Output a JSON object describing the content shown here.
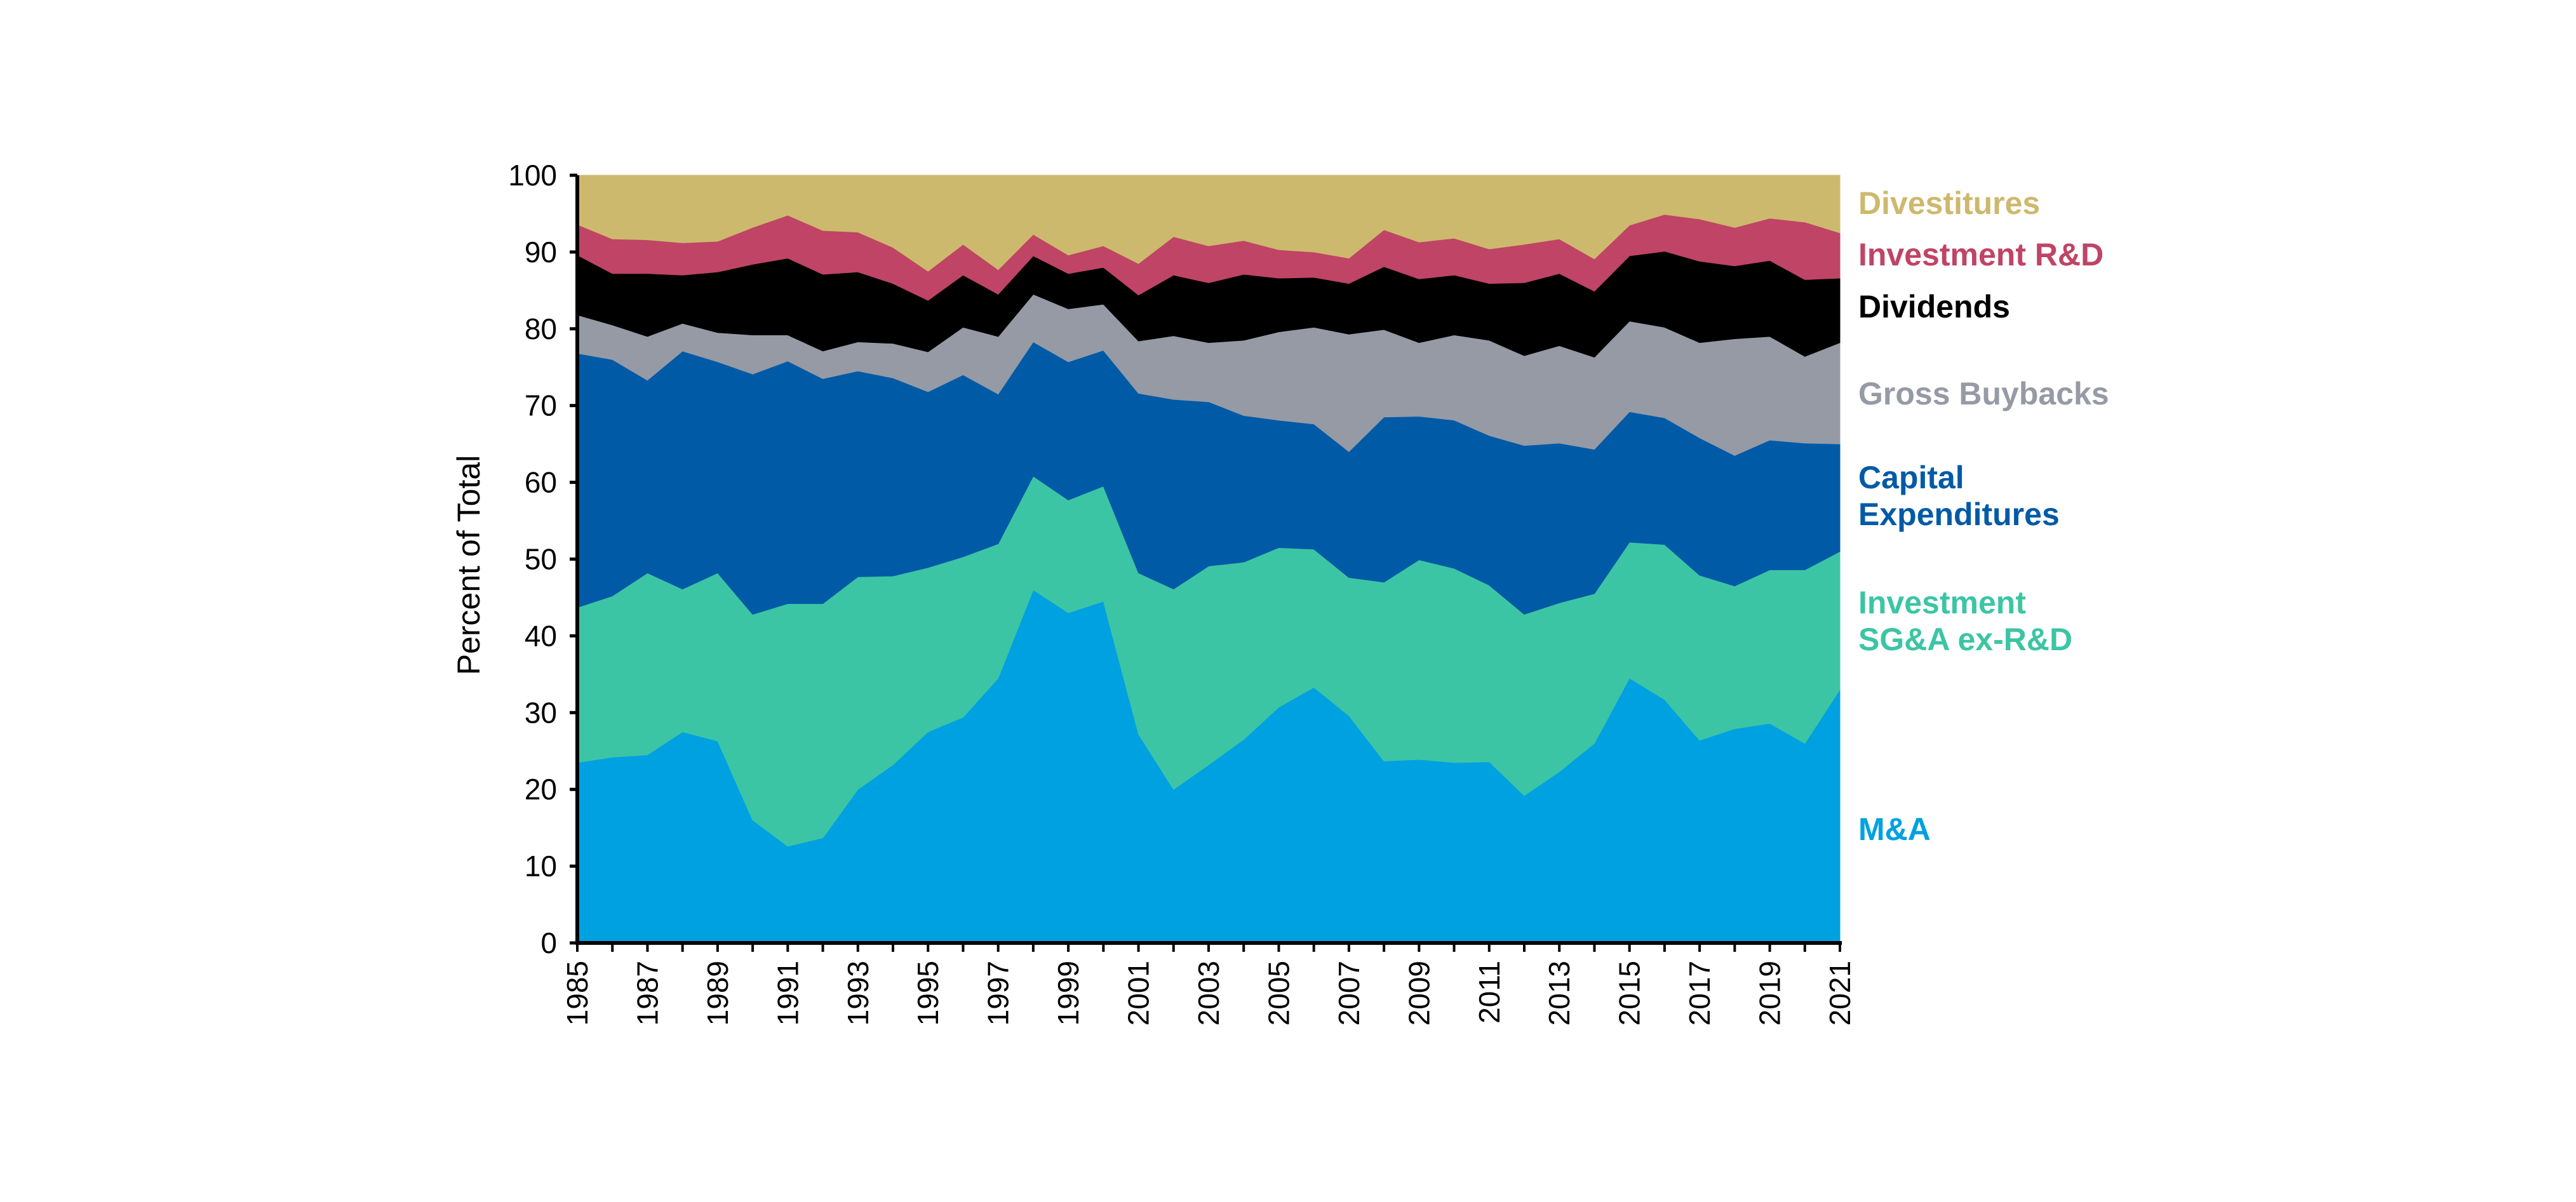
{
  "chart_data": {
    "type": "area",
    "stacked": true,
    "xlabel": "",
    "ylabel": "Percent of Total",
    "ylim": [
      0,
      100
    ],
    "yticks": [
      0,
      10,
      20,
      30,
      40,
      50,
      60,
      70,
      80,
      90,
      100
    ],
    "x": [
      1985,
      1986,
      1987,
      1988,
      1989,
      1990,
      1991,
      1992,
      1993,
      1994,
      1995,
      1996,
      1997,
      1998,
      1999,
      2000,
      2001,
      2002,
      2003,
      2004,
      2005,
      2006,
      2007,
      2008,
      2009,
      2010,
      2011,
      2012,
      2013,
      2014,
      2015,
      2016,
      2017,
      2018,
      2019,
      2020,
      2021
    ],
    "xtick_labels": [
      "1985",
      "1987",
      "1989",
      "1991",
      "1993",
      "1995",
      "1997",
      "1999",
      "2001",
      "2003",
      "2005",
      "2007",
      "2009",
      "2011",
      "2013",
      "2015",
      "2017",
      "2019",
      "2021"
    ],
    "grid": false,
    "legend_position": "right",
    "series": [
      {
        "name": "M&A",
        "color": "#00a1e0",
        "legend_lines": [
          "M&A"
        ],
        "values": [
          23.5,
          24.2,
          24.5,
          27.5,
          26.3,
          16.0,
          12.6,
          13.7,
          20.0,
          23.2,
          27.5,
          29.4,
          34.5,
          46.0,
          43.0,
          44.5,
          27.2,
          20.0,
          23.2,
          26.5,
          30.7,
          33.3,
          29.6,
          23.7,
          23.9,
          23.5,
          23.6,
          19.2,
          22.3,
          26.0,
          34.5,
          31.7,
          26.4,
          27.9,
          28.6,
          26.0,
          33.0
        ]
      },
      {
        "name": "Investment SG&A ex-R&D",
        "color": "#3cc5a4",
        "legend_lines": [
          "Investment",
          "SG&A ex-R&D"
        ],
        "values": [
          20.2,
          21.0,
          23.7,
          18.6,
          21.9,
          26.8,
          31.6,
          30.5,
          27.7,
          24.6,
          21.4,
          20.9,
          17.5,
          14.8,
          14.7,
          15.0,
          21.0,
          26.1,
          25.9,
          23.1,
          20.8,
          18.0,
          18.0,
          23.3,
          26.0,
          25.3,
          23.0,
          23.6,
          22.0,
          19.5,
          17.7,
          20.2,
          21.5,
          18.6,
          20.0,
          22.6,
          18.0
        ]
      },
      {
        "name": "Capital Expenditures",
        "color": "#005aa6",
        "legend_lines": [
          "Capital",
          "Expenditures"
        ],
        "values": [
          33.1,
          30.8,
          25.1,
          31.0,
          27.5,
          31.3,
          31.6,
          29.3,
          26.8,
          25.8,
          22.9,
          23.7,
          19.5,
          17.5,
          18.0,
          17.7,
          23.4,
          24.7,
          21.4,
          19.1,
          16.6,
          16.3,
          16.4,
          21.5,
          18.7,
          19.3,
          19.5,
          22.0,
          20.8,
          18.8,
          17.0,
          16.5,
          17.9,
          17.0,
          16.9,
          16.5,
          14.0
        ]
      },
      {
        "name": "Gross Buybacks",
        "color": "#959aa5",
        "legend_lines": [
          "Gross Buybacks"
        ],
        "values": [
          5.0,
          4.5,
          5.7,
          3.6,
          3.8,
          5.1,
          3.4,
          3.6,
          3.8,
          4.5,
          5.2,
          6.2,
          7.5,
          6.2,
          6.9,
          6.0,
          6.8,
          8.3,
          7.7,
          9.8,
          11.5,
          12.6,
          15.3,
          11.4,
          9.6,
          11.1,
          12.4,
          11.7,
          12.7,
          12.0,
          11.8,
          11.8,
          12.4,
          15.2,
          13.5,
          11.3,
          13.2
        ]
      },
      {
        "name": "Dividends",
        "color": "#000000",
        "legend_lines": [
          "Dividends"
        ],
        "values": [
          7.8,
          6.7,
          8.2,
          6.3,
          7.9,
          9.2,
          10.0,
          10.0,
          9.1,
          7.8,
          6.7,
          6.8,
          5.5,
          5.0,
          4.6,
          4.8,
          6.0,
          7.9,
          7.8,
          8.6,
          7.0,
          6.5,
          6.6,
          8.2,
          8.3,
          7.8,
          7.4,
          9.5,
          9.4,
          8.6,
          8.5,
          9.9,
          10.6,
          9.5,
          9.9,
          10.0,
          8.4
        ]
      },
      {
        "name": "Investment R&D",
        "color": "#bf4465",
        "legend_lines": [
          "Investment R&D"
        ],
        "values": [
          4.0,
          4.5,
          4.4,
          4.2,
          4.0,
          4.8,
          5.6,
          5.7,
          5.2,
          4.7,
          3.8,
          4.0,
          3.2,
          2.8,
          2.4,
          2.8,
          4.1,
          5.0,
          4.8,
          4.4,
          3.7,
          3.3,
          3.3,
          4.8,
          4.8,
          4.8,
          4.5,
          5.0,
          4.5,
          4.2,
          4.0,
          4.8,
          5.5,
          5.0,
          5.5,
          7.5,
          5.9
        ]
      },
      {
        "name": "Divestitures",
        "color": "#cdb96d",
        "legend_lines": [
          "Divestitures"
        ],
        "values": [
          6.4,
          8.3,
          8.4,
          8.8,
          8.6,
          6.8,
          5.2,
          7.2,
          7.4,
          9.4,
          12.5,
          9.0,
          12.3,
          7.7,
          10.4,
          9.2,
          11.5,
          8.0,
          9.2,
          8.5,
          9.7,
          10.0,
          10.8,
          7.1,
          8.7,
          8.2,
          9.6,
          9.0,
          8.3,
          10.9,
          6.5,
          5.1,
          5.7,
          6.8,
          5.6,
          6.1,
          7.5
        ]
      }
    ]
  }
}
